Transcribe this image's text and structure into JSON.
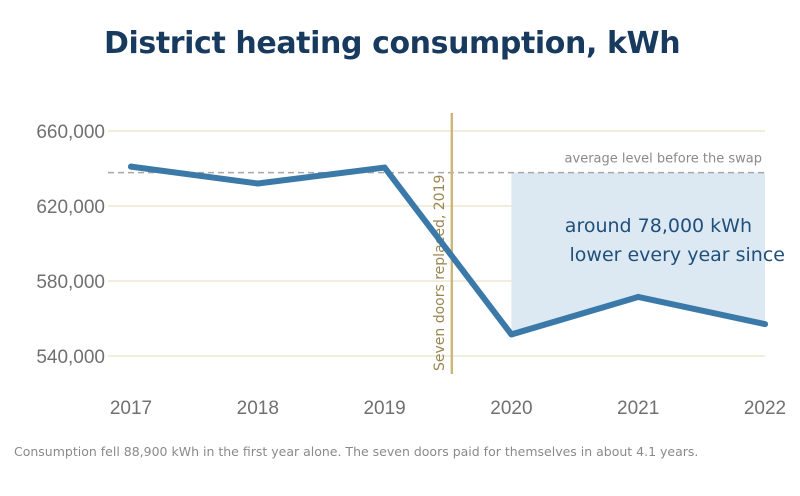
{
  "title": "District heating consumption, kWh",
  "footnote": "Consumption fell 88,900 kWh in the first year alone. The seven doors paid for themselves in about 4.1 years.",
  "colors": {
    "line": "#3b7aa8",
    "band": "#dde9f2",
    "event_line": "#cdb57a",
    "avg_line": "#a8a8a8",
    "grid": "#e9e2c6",
    "title": "#173a5e"
  },
  "chart_data": {
    "type": "line",
    "x": [
      2017,
      2018,
      2019,
      2020,
      2021,
      2022
    ],
    "series": [
      {
        "values": [
          641000,
          632000,
          640500,
          551500,
          571500,
          557000
        ]
      }
    ],
    "ylim": [
      530000,
      670000
    ],
    "yticks": [
      "540,000",
      "580,000",
      "620,000",
      "660,000"
    ],
    "ytick_values": [
      540000,
      580000,
      620000,
      660000
    ],
    "xticks": [
      "2017",
      "2018",
      "2019",
      "2020",
      "2021",
      "2022"
    ],
    "grid": true,
    "annotations": {
      "average_label": "average level before the swap",
      "average_value": 637800,
      "event_label": "Seven doors replaced, 2019",
      "event_x": 2019.53,
      "band_text_line1": "around 78,000 kWh",
      "band_text_line2": "lower every year since",
      "band_from_x": 2020
    }
  }
}
